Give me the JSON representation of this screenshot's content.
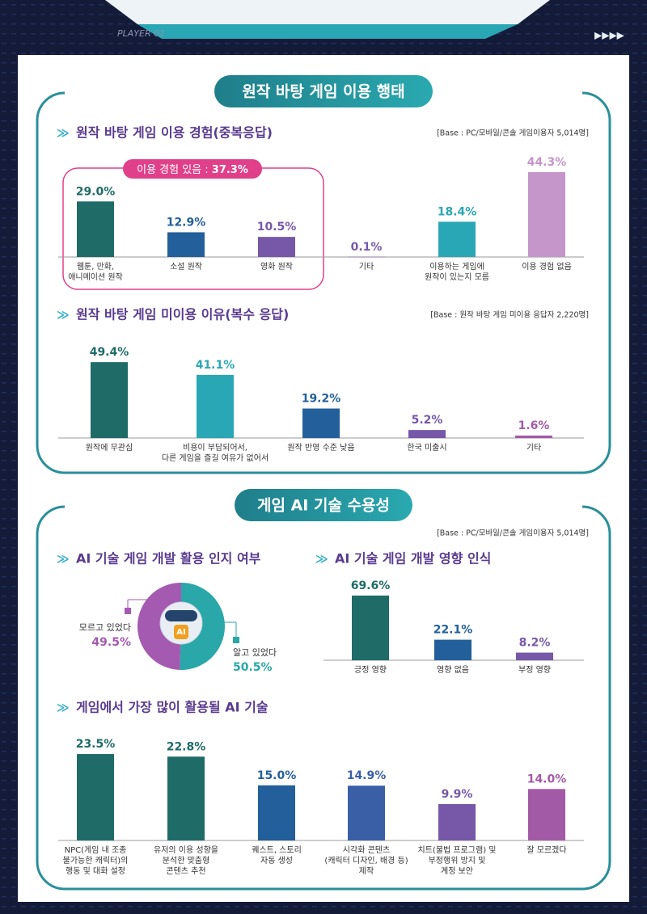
{
  "header": "PLAYER 01",
  "sections": [
    {
      "title": "원작 바탕 게임 이용 행태"
    },
    {
      "title": "게임 AI 기술 수용성",
      "note": "[Base : PC/모바일/콘솔 게임이용자 5,014명]"
    }
  ],
  "highlight": {
    "label": "이용 경험 있음 : ",
    "value": "37.3%"
  },
  "chart_data": [
    {
      "type": "bar",
      "title": "원작 바탕 게임 이용 경험(중복응답)",
      "note": "[Base : PC/모바일/콘솔 게임이용자 5,014명]",
      "categories": [
        "웹툰, 만화,\n애니메이션 원작",
        "소설 원작",
        "영화 원작",
        "기타",
        "이용하는 게임에\n원작이 있는지 모름",
        "이용 경험 없음"
      ],
      "values": [
        29.0,
        12.9,
        10.5,
        0.1,
        18.4,
        44.3
      ],
      "value_labels": [
        "29.0%",
        "12.9%",
        "10.5%",
        "0.1%",
        "18.4%",
        "44.3%"
      ],
      "colors": [
        "#1e6b68",
        "#235f9a",
        "#7657a8",
        "#7657a8",
        "#2aa7b4",
        "#c596c9"
      ]
    },
    {
      "type": "bar",
      "title": "원작 바탕 게임 미이용 이유(복수 응답)",
      "note": "[Base : 원작 바탕 게임 미이용 응답자 2,220명]",
      "categories": [
        "원작에 무관심",
        "비용이 부담되어서,\n다른 게임을 즐길 여유가 없어서",
        "원작 반영 수준 낮음",
        "한국 미출시",
        "기타"
      ],
      "values": [
        49.4,
        41.1,
        19.2,
        5.2,
        1.6
      ],
      "value_labels": [
        "49.4%",
        "41.1%",
        "19.2%",
        "5.2%",
        "1.6%"
      ],
      "colors": [
        "#1e6b68",
        "#2aa7b4",
        "#235f9a",
        "#7657a8",
        "#a35aa6"
      ]
    },
    {
      "type": "pie",
      "title": "AI 기술 게임 개발 활용 인지 여부",
      "categories": [
        "모르고 있었다",
        "알고 있었다"
      ],
      "values": [
        49.5,
        50.5
      ],
      "value_labels": [
        "49.5%",
        "50.5%"
      ],
      "colors": [
        "#a45ab0",
        "#2aa7a8"
      ]
    },
    {
      "type": "bar",
      "title": "AI 기술 게임 개발 영향 인식",
      "categories": [
        "긍정 영향",
        "영향 없음",
        "부정 영향"
      ],
      "values": [
        69.6,
        22.1,
        8.2
      ],
      "value_labels": [
        "69.6%",
        "22.1%",
        "8.2%"
      ],
      "colors": [
        "#1e6b68",
        "#235f9a",
        "#7657a8"
      ]
    },
    {
      "type": "bar",
      "title": "게임에서 가장 많이 활용될 AI 기술",
      "categories": [
        "NPC(게임 내 조종\n불가능한 캐릭터)의\n행동 및 대화 설정",
        "유저의 이용 성향을\n분석한 맞춤형\n콘텐츠 추천",
        "퀘스트, 스토리\n자동 생성",
        "시각화 콘텐츠\n(캐릭터 디자인, 배경 등)\n제작",
        "치트(불법 프로그램) 및\n부정행위 방지 및\n계정 보안",
        "잘 모르겠다"
      ],
      "values": [
        23.5,
        22.8,
        15.0,
        14.9,
        9.9,
        14.0
      ],
      "value_labels": [
        "23.5%",
        "22.8%",
        "15.0%",
        "14.9%",
        "9.9%",
        "14.0%"
      ],
      "colors": [
        "#1e6b68",
        "#1e6b68",
        "#235f9a",
        "#3a5fa6",
        "#7657a8",
        "#a35aa6"
      ]
    }
  ]
}
